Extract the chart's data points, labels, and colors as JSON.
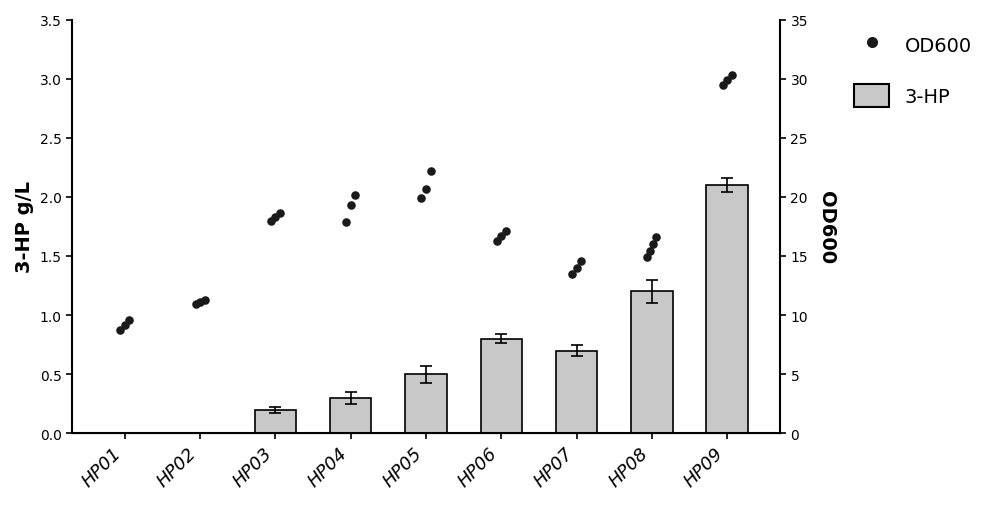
{
  "categories": [
    "HP01",
    "HP02",
    "HP03",
    "HP04",
    "HP05",
    "HP06",
    "HP07",
    "HP08",
    "HP09"
  ],
  "bar_values": [
    0.0,
    0.0,
    0.2,
    0.3,
    0.5,
    0.8,
    0.7,
    1.2,
    2.1
  ],
  "bar_errors": [
    0.0,
    0.0,
    0.025,
    0.05,
    0.07,
    0.04,
    0.05,
    0.1,
    0.06
  ],
  "bar_color": "#C8C8C8",
  "bar_edgecolor": "#000000",
  "od600_points": [
    [
      0.87,
      0.92,
      0.96
    ],
    [
      1.09,
      1.11,
      1.13
    ],
    [
      1.8,
      1.83,
      1.86
    ],
    [
      1.79,
      1.93,
      2.02
    ],
    [
      1.99,
      2.07,
      2.22
    ],
    [
      1.63,
      1.67,
      1.71
    ],
    [
      1.35,
      1.4,
      1.46
    ],
    [
      1.49,
      1.54,
      1.6,
      1.66
    ],
    [
      2.95,
      2.99,
      3.03
    ]
  ],
  "ylabel_left": "3-HP g/L",
  "ylabel_right": "OD600",
  "ylim_left": [
    0,
    3.5
  ],
  "ylim_right": [
    0,
    35
  ],
  "yticks_left": [
    0.0,
    0.5,
    1.0,
    1.5,
    2.0,
    2.5,
    3.0,
    3.5
  ],
  "yticks_right": [
    0,
    5,
    10,
    15,
    20,
    25,
    30,
    35
  ],
  "dot_color": "#1a1a1a",
  "dot_size": 38,
  "background_color": "#ffffff",
  "legend_dot_label": "OD600",
  "legend_bar_label": "3-HP",
  "figsize": [
    10.0,
    5.06
  ],
  "dpi": 100
}
